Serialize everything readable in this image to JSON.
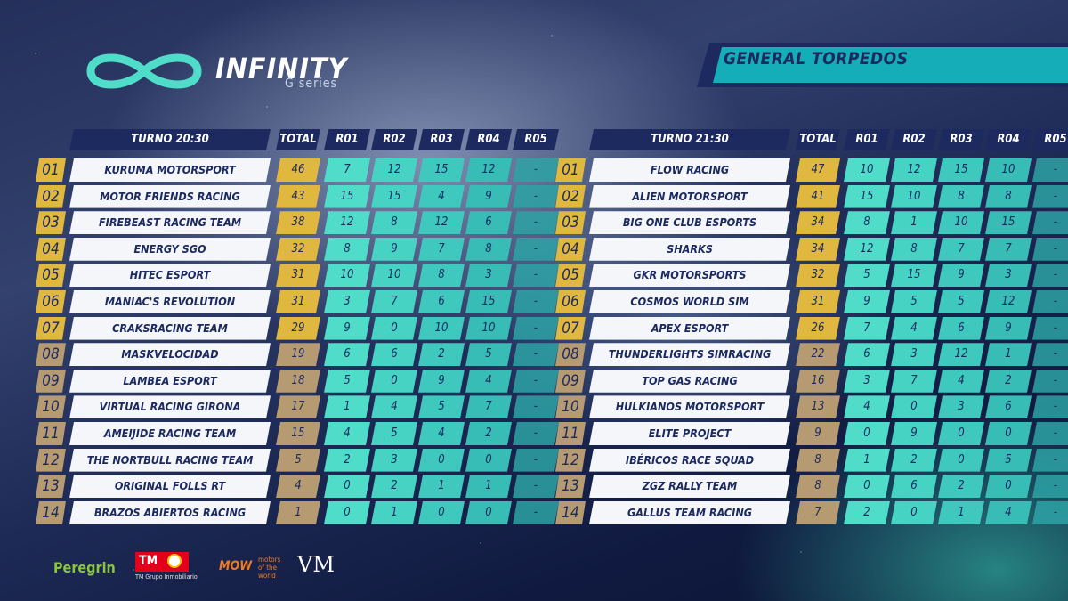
{
  "logo": {
    "word": "INFINITY",
    "sub": "G series"
  },
  "banner": {
    "title": "GENERAL TORPEDOS"
  },
  "colors": {
    "navy": "#1c2a60",
    "gold": "#e0b840",
    "tan": "#b69a72",
    "teal": "#46d3c4"
  },
  "left": {
    "headers": [
      "TURNO 20:30",
      "TOTAL",
      "R01",
      "R02",
      "R03",
      "R04",
      "R05"
    ],
    "rows": [
      {
        "pos": "01",
        "team": "KURUMA MOTORSPORT",
        "total": "46",
        "r": [
          "7",
          "12",
          "15",
          "12",
          "-"
        ]
      },
      {
        "pos": "02",
        "team": "MOTOR FRIENDS RACING",
        "total": "43",
        "r": [
          "15",
          "15",
          "4",
          "9",
          "-"
        ]
      },
      {
        "pos": "03",
        "team": "FIREBEAST RACING TEAM",
        "total": "38",
        "r": [
          "12",
          "8",
          "12",
          "6",
          "-"
        ]
      },
      {
        "pos": "04",
        "team": "ENERGY SGO",
        "total": "32",
        "r": [
          "8",
          "9",
          "7",
          "8",
          "-"
        ]
      },
      {
        "pos": "05",
        "team": "HITEC ESPORT",
        "total": "31",
        "r": [
          "10",
          "10",
          "8",
          "3",
          "-"
        ]
      },
      {
        "pos": "06",
        "team": "MANIAC'S REVOLUTION",
        "total": "31",
        "r": [
          "3",
          "7",
          "6",
          "15",
          "-"
        ]
      },
      {
        "pos": "07",
        "team": "CRAKSRACING TEAM",
        "total": "29",
        "r": [
          "9",
          "0",
          "10",
          "10",
          "-"
        ]
      },
      {
        "pos": "08",
        "team": "MASKVELOCIDAD",
        "total": "19",
        "r": [
          "6",
          "6",
          "2",
          "5",
          "-"
        ]
      },
      {
        "pos": "09",
        "team": "LAMBEA ESPORT",
        "total": "18",
        "r": [
          "5",
          "0",
          "9",
          "4",
          "-"
        ]
      },
      {
        "pos": "10",
        "team": "VIRTUAL RACING GIRONA",
        "total": "17",
        "r": [
          "1",
          "4",
          "5",
          "7",
          "-"
        ]
      },
      {
        "pos": "11",
        "team": "AMEIJIDE RACING TEAM",
        "total": "15",
        "r": [
          "4",
          "5",
          "4",
          "2",
          "-"
        ]
      },
      {
        "pos": "12",
        "team": "THE NORTBULL RACING TEAM",
        "total": "5",
        "r": [
          "2",
          "3",
          "0",
          "0",
          "-"
        ]
      },
      {
        "pos": "13",
        "team": "ORIGINAL FOLLS RT",
        "total": "4",
        "r": [
          "0",
          "2",
          "1",
          "1",
          "-"
        ]
      },
      {
        "pos": "14",
        "team": "BRAZOS ABIERTOS RACING",
        "total": "1",
        "r": [
          "0",
          "1",
          "0",
          "0",
          "-"
        ]
      }
    ]
  },
  "right": {
    "headers": [
      "TURNO 21:30",
      "TOTAL",
      "R01",
      "R02",
      "R03",
      "R04",
      "R05"
    ],
    "rows": [
      {
        "pos": "01",
        "team": "FLOW RACING",
        "total": "47",
        "r": [
          "10",
          "12",
          "15",
          "10",
          "-"
        ]
      },
      {
        "pos": "02",
        "team": "ALIEN MOTORSPORT",
        "total": "41",
        "r": [
          "15",
          "10",
          "8",
          "8",
          "-"
        ]
      },
      {
        "pos": "03",
        "team": "BIG ONE CLUB ESPORTS",
        "total": "34",
        "r": [
          "8",
          "1",
          "10",
          "15",
          "-"
        ]
      },
      {
        "pos": "04",
        "team": "SHARKS",
        "total": "34",
        "r": [
          "12",
          "8",
          "7",
          "7",
          "-"
        ]
      },
      {
        "pos": "05",
        "team": "GKR MOTORSPORTS",
        "total": "32",
        "r": [
          "5",
          "15",
          "9",
          "3",
          "-"
        ]
      },
      {
        "pos": "06",
        "team": "COSMOS WORLD SIM",
        "total": "31",
        "r": [
          "9",
          "5",
          "5",
          "12",
          "-"
        ]
      },
      {
        "pos": "07",
        "team": "APEX ESPORT",
        "total": "26",
        "r": [
          "7",
          "4",
          "6",
          "9",
          "-"
        ]
      },
      {
        "pos": "08",
        "team": "THUNDERLIGHTS SIMRACING",
        "total": "22",
        "r": [
          "6",
          "3",
          "12",
          "1",
          "-"
        ]
      },
      {
        "pos": "09",
        "team": "TOP GAS RACING",
        "total": "16",
        "r": [
          "3",
          "7",
          "4",
          "2",
          "-"
        ]
      },
      {
        "pos": "10",
        "team": "HULKIANOS MOTORSPORT",
        "total": "13",
        "r": [
          "4",
          "0",
          "3",
          "6",
          "-"
        ]
      },
      {
        "pos": "11",
        "team": "ELITE PROJECT",
        "total": "9",
        "r": [
          "0",
          "9",
          "0",
          "0",
          "-"
        ]
      },
      {
        "pos": "12",
        "team": "IBÉRICOS RACE SQUAD",
        "total": "8",
        "r": [
          "1",
          "2",
          "0",
          "5",
          "-"
        ]
      },
      {
        "pos": "13",
        "team": "ZGZ RALLY TEAM",
        "total": "8",
        "r": [
          "0",
          "6",
          "2",
          "0",
          "-"
        ]
      },
      {
        "pos": "14",
        "team": "GALLUS TEAM RACING",
        "total": "7",
        "r": [
          "2",
          "0",
          "1",
          "4",
          "-"
        ]
      }
    ]
  },
  "sponsors": {
    "peregrin": "Peregrin",
    "tm": "TM",
    "tm_sub": "TM Grupo Inmobiliario",
    "mow": "MOW",
    "mow_sub": "motors of the world",
    "vm": "VM"
  }
}
